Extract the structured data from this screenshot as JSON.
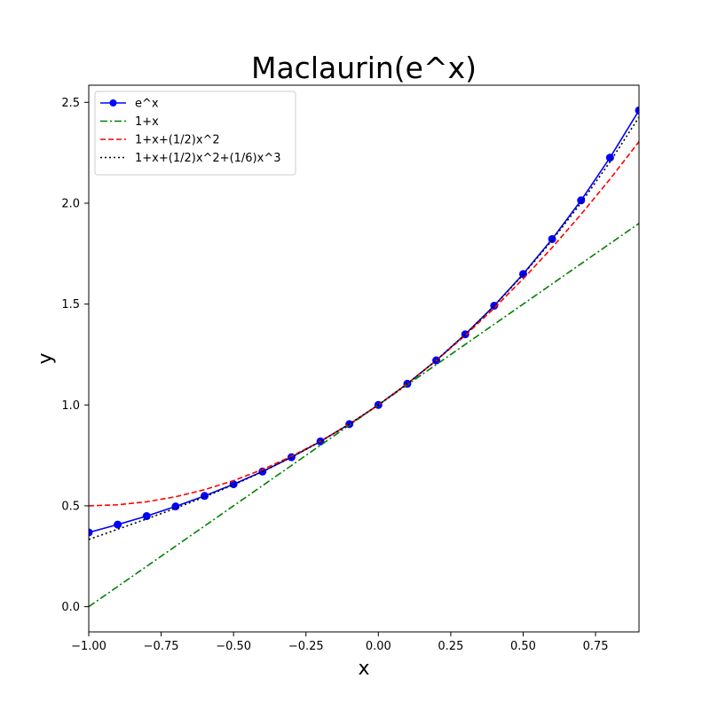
{
  "chart_data": {
    "type": "line",
    "title": "Maclaurin(e^x)",
    "xlabel": "x",
    "ylabel": "y",
    "xlim": [
      -1.0,
      0.9
    ],
    "ylim": [
      -0.125,
      2.585
    ],
    "x_ticks": [
      -1.0,
      -0.75,
      -0.5,
      -0.25,
      0.0,
      0.25,
      0.5,
      0.75
    ],
    "x_tick_labels": [
      "−1.00",
      "−0.75",
      "−0.50",
      "−0.25",
      "0.00",
      "0.25",
      "0.50",
      "0.75"
    ],
    "y_ticks": [
      0.0,
      0.5,
      1.0,
      1.5,
      2.0,
      2.5
    ],
    "y_tick_labels": [
      "0.0",
      "0.5",
      "1.0",
      "1.5",
      "2.0",
      "2.5"
    ],
    "grid": false,
    "legend_position": "top-left",
    "x": [
      -1.0,
      -0.9,
      -0.8,
      -0.7,
      -0.6,
      -0.5,
      -0.4,
      -0.3,
      -0.2,
      -0.1,
      0.0,
      0.1,
      0.2,
      0.3,
      0.4,
      0.5,
      0.6,
      0.7,
      0.8,
      0.9
    ],
    "series": [
      {
        "name": "e^x",
        "color": "#0000ff",
        "style": "solid",
        "marker": "circle",
        "values": [
          0.368,
          0.407,
          0.449,
          0.497,
          0.549,
          0.607,
          0.67,
          0.741,
          0.819,
          0.905,
          1.0,
          1.105,
          1.221,
          1.35,
          1.492,
          1.649,
          1.822,
          2.014,
          2.226,
          2.46
        ]
      },
      {
        "name": "1+x",
        "color": "#008000",
        "style": "dashdot",
        "marker": "none",
        "values": [
          0.0,
          0.1,
          0.2,
          0.3,
          0.4,
          0.5,
          0.6,
          0.7,
          0.8,
          0.9,
          1.0,
          1.1,
          1.2,
          1.3,
          1.4,
          1.5,
          1.6,
          1.7,
          1.8,
          1.9
        ]
      },
      {
        "name": "1+x+(1/2)x^2",
        "color": "#ff0000",
        "style": "dashed",
        "marker": "none",
        "values": [
          0.5,
          0.505,
          0.52,
          0.545,
          0.58,
          0.625,
          0.68,
          0.745,
          0.82,
          0.905,
          1.0,
          1.105,
          1.22,
          1.345,
          1.48,
          1.625,
          1.78,
          1.945,
          2.12,
          2.305
        ]
      },
      {
        "name": "1+x+(1/2)x^2+(1/6)x^3",
        "color": "#000000",
        "style": "dotted",
        "marker": "none",
        "values": [
          0.333,
          0.384,
          0.435,
          0.488,
          0.544,
          0.604,
          0.669,
          0.741,
          0.819,
          0.905,
          1.0,
          1.105,
          1.221,
          1.35,
          1.491,
          1.646,
          1.816,
          2.002,
          2.205,
          2.427
        ]
      }
    ]
  }
}
